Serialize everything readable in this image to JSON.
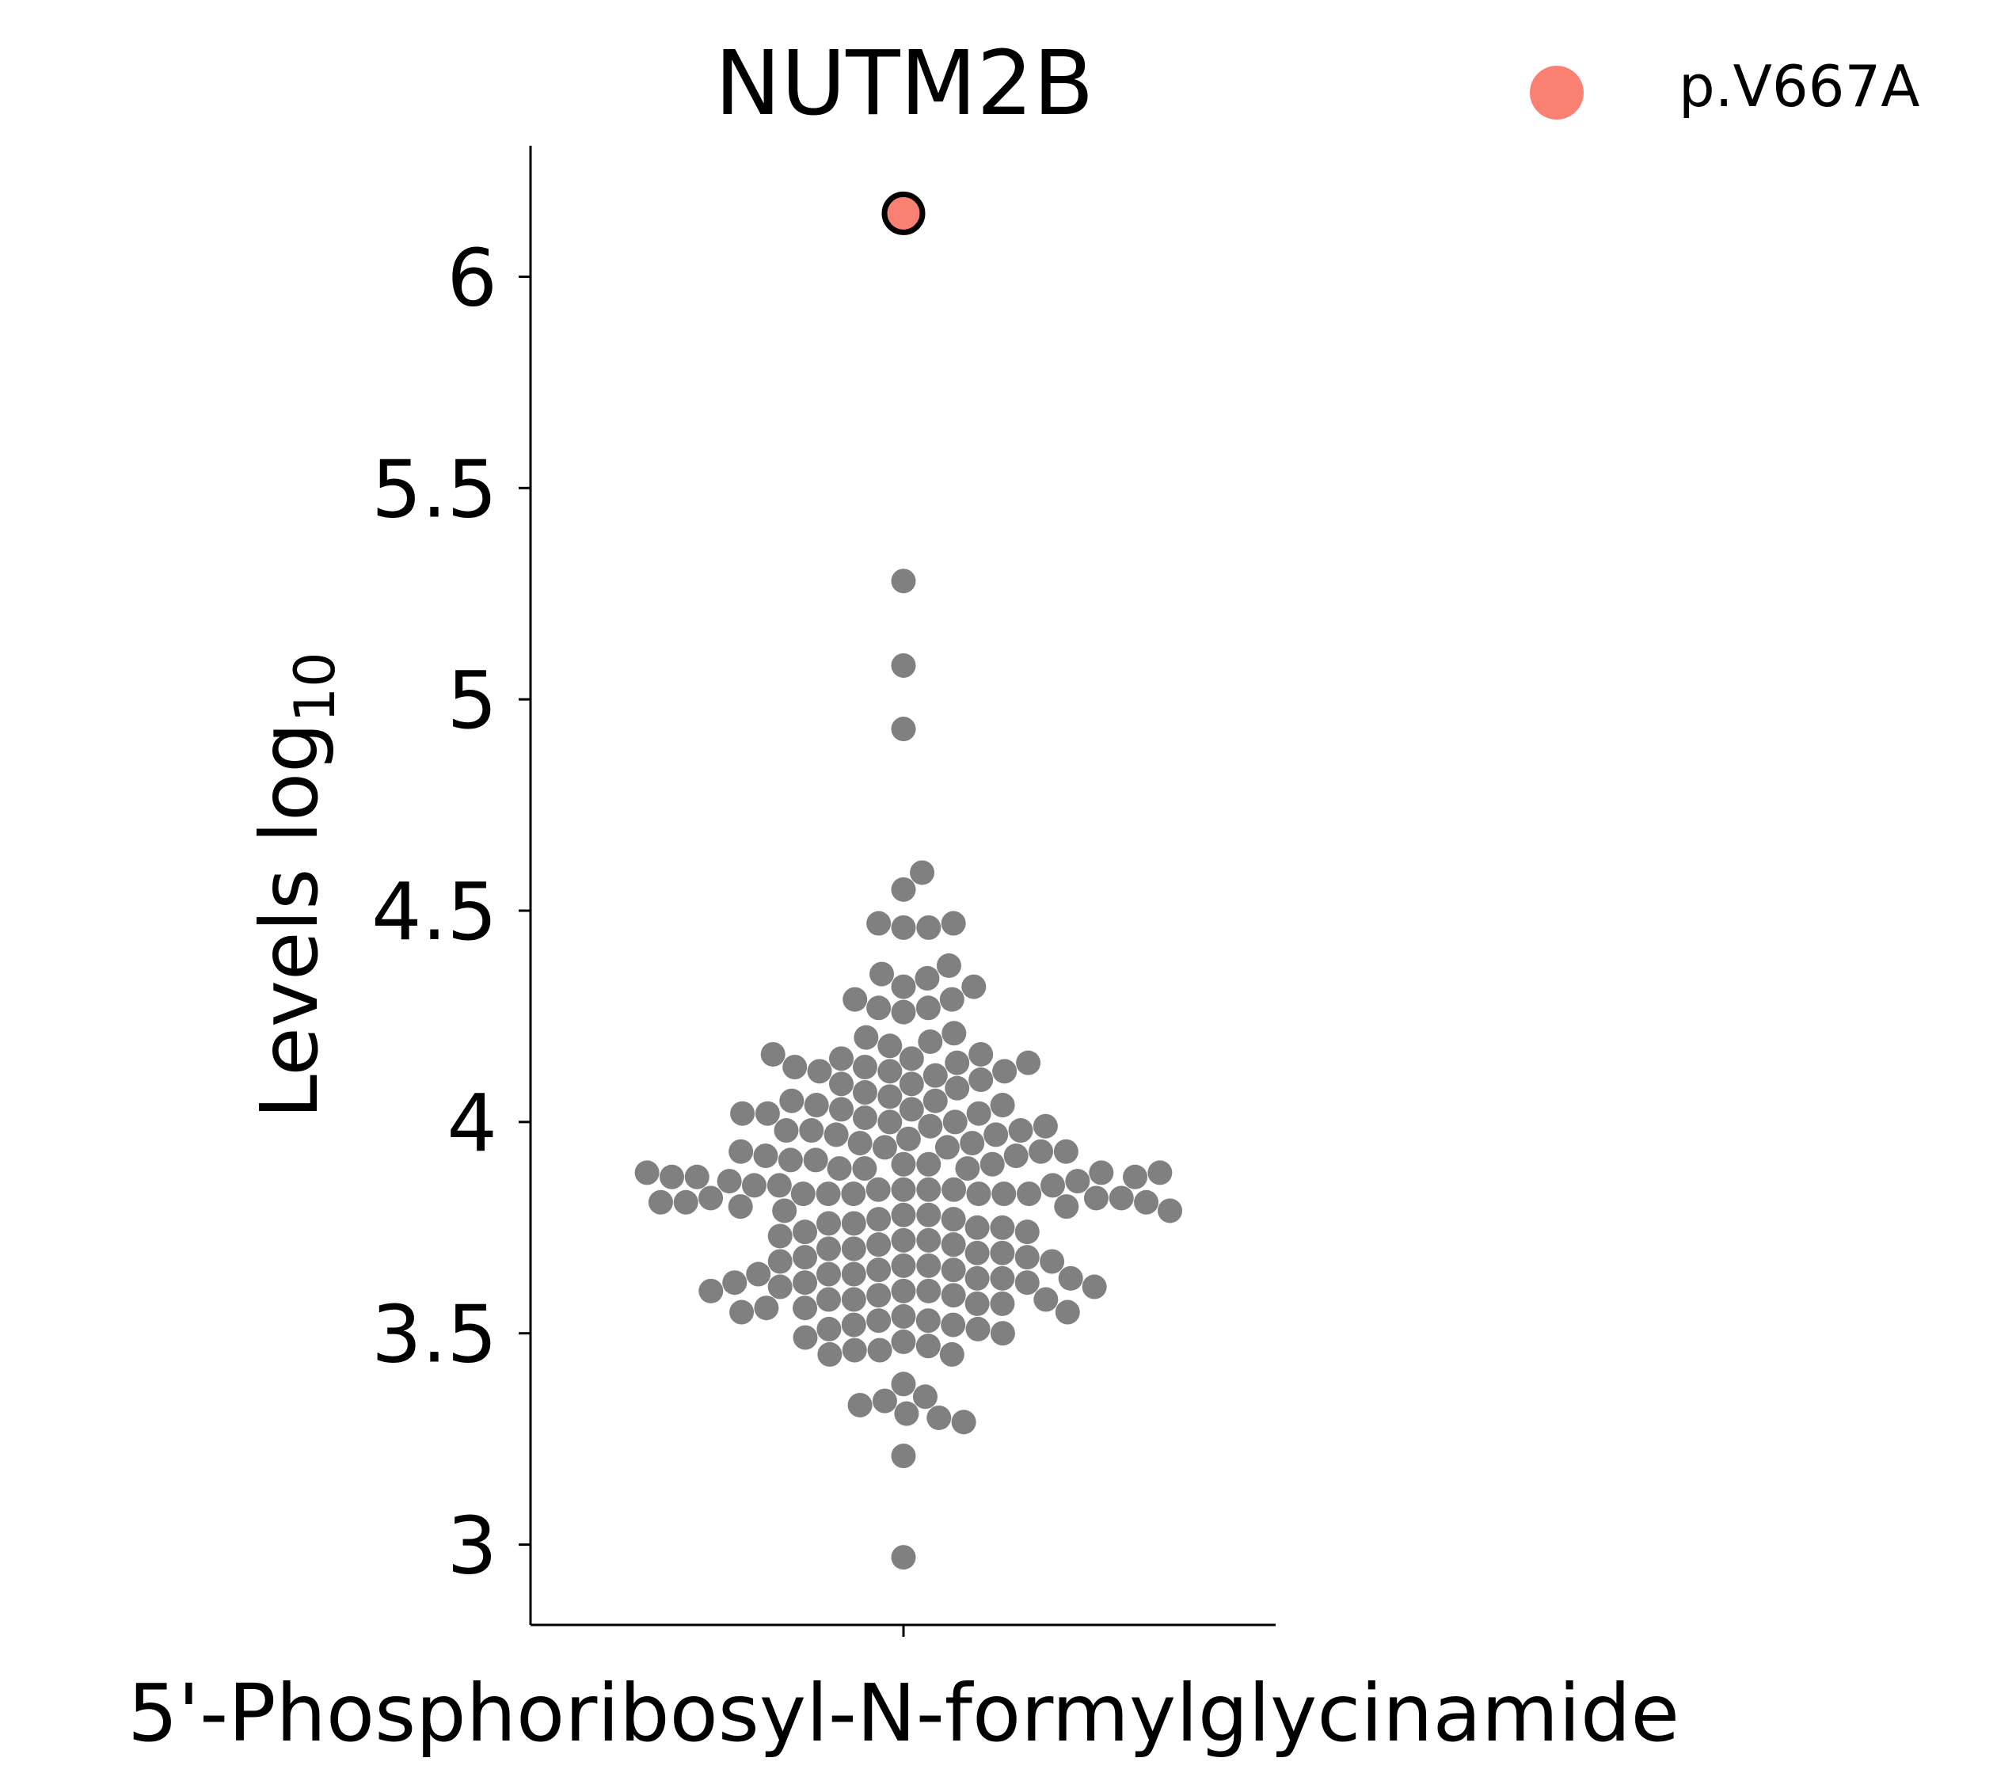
{
  "chart_data": {
    "type": "scatter",
    "subtype": "swarm",
    "title": "NUTM2B",
    "xlabel": "5'-Phosphoribosyl-N-formylglycinamide",
    "ylabel_main": "Levels log",
    "ylabel_sub": "10",
    "categories": [
      "5'-Phosphoribosyl-N-formylglycinamide"
    ],
    "ylim": [
      2.81,
      6.31
    ],
    "yticks": [
      3,
      3.5,
      4,
      4.5,
      5,
      5.5,
      6
    ],
    "ytick_labels": [
      "3",
      "3.5",
      "4",
      "4.5",
      "5",
      "5.5",
      "6"
    ],
    "grid": false,
    "legend": {
      "placement": "top-right",
      "entries": [
        {
          "label": "p.V667A",
          "color": "#fa8072"
        }
      ]
    },
    "highlight": {
      "label": "p.V667A",
      "value": 6.15,
      "color": "#fa8072",
      "edge_color": "#000000"
    },
    "background_color": "#808080",
    "background_values": [
      5.28,
      5.08,
      4.93,
      4.59,
      4.55,
      4.47,
      4.46,
      4.46,
      4.47,
      4.37,
      4.35,
      4.34,
      4.32,
      4.32,
      4.29,
      4.29,
      4.27,
      4.27,
      4.26,
      4.21,
      4.2,
      4.19,
      4.18,
      4.16,
      4.16,
      4.15,
      4.15,
      4.14,
      4.14,
      4.13,
      4.13,
      4.12,
      4.12,
      4.12,
      4.11,
      4.1,
      4.09,
      4.09,
      4.08,
      4.07,
      4.06,
      4.05,
      4.05,
      4.04,
      4.04,
      4.03,
      4.03,
      4.02,
      4.02,
      4.02,
      4.01,
      4.0,
      4.0,
      3.99,
      3.99,
      3.98,
      3.98,
      3.98,
      3.97,
      3.97,
      3.96,
      3.95,
      3.95,
      3.94,
      3.94,
      3.93,
      3.93,
      3.93,
      3.92,
      3.92,
      3.91,
      3.91,
      3.9,
      3.9,
      3.9,
      3.89,
      3.89,
      3.89,
      3.88,
      3.88,
      3.88,
      3.87,
      3.87,
      3.87,
      3.86,
      3.86,
      3.85,
      3.85,
      3.85,
      3.84,
      3.84,
      3.84,
      3.84,
      3.83,
      3.83,
      3.83,
      3.83,
      3.83,
      3.83,
      3.82,
      3.82,
      3.82,
      3.81,
      3.81,
      3.81,
      3.8,
      3.8,
      3.79,
      3.79,
      3.78,
      3.78,
      3.77,
      3.77,
      3.76,
      3.76,
      3.75,
      3.75,
      3.74,
      3.74,
      3.73,
      3.72,
      3.72,
      3.71,
      3.71,
      3.7,
      3.7,
      3.69,
      3.69,
      3.68,
      3.68,
      3.67,
      3.67,
      3.66,
      3.66,
      3.65,
      3.65,
      3.64,
      3.64,
      3.64,
      3.63,
      3.63,
      3.63,
      3.62,
      3.62,
      3.62,
      3.61,
      3.61,
      3.6,
      3.6,
      3.6,
      3.59,
      3.59,
      3.58,
      3.58,
      3.58,
      3.57,
      3.57,
      3.56,
      3.56,
      3.55,
      3.55,
      3.54,
      3.53,
      3.53,
      3.52,
      3.52,
      3.51,
      3.51,
      3.5,
      3.49,
      3.48,
      3.47,
      3.46,
      3.46,
      3.45,
      3.45,
      3.38,
      3.35,
      3.34,
      3.33,
      3.31,
      3.3,
      3.29,
      3.21,
      2.97
    ]
  }
}
